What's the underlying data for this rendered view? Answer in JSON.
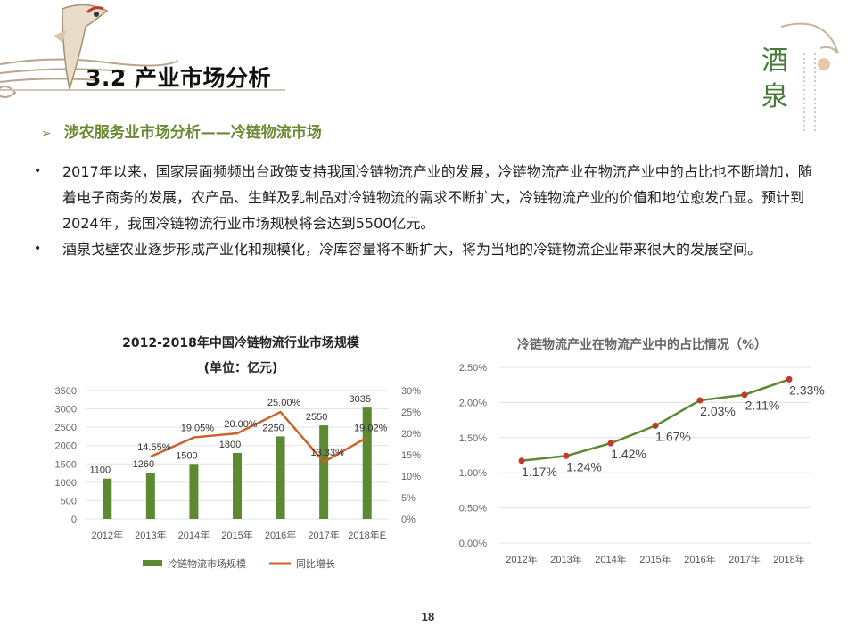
{
  "page": {
    "title": "3.2 产业市场分析",
    "subtitle": "涉农服务业市场分析——冷链物流市场",
    "bullets": [
      "2017年以来，国家层面频频出台政策支持我国冷链物流产业的发展，冷链物流产业在物流产业中的占比也不断增加，随着电子商务的发展，农产品、生鲜及乳制品对冷链物流的需求不断扩大，冷链物流产业的价值和地位愈发凸显。预计到2024年，我国冷链物流行业市场规模将会达到5500亿元。",
      "酒泉戈壁农业逐步形成产业化和规模化，冷库容量将不断扩大，将为当地的冷链物流企业带来很大的发展空间。"
    ],
    "page_number": "18",
    "logo_text": "酒泉",
    "colors": {
      "accent_green": "#6a8a33",
      "bar_green": "#5b8a32",
      "line_orange": "#c8642a",
      "line_green": "#5b8a32",
      "point_red": "#c0392b"
    }
  },
  "chart_data": [
    {
      "type": "bar",
      "title": "2012-2018年中国冷链物流行业市场规模",
      "subtitle": "(单位：亿元)",
      "categories": [
        "2012年",
        "2013年",
        "2014年",
        "2015年",
        "2016年",
        "2017年",
        "2018年E"
      ],
      "series": [
        {
          "name": "冷链物流市场规模",
          "type": "bar",
          "axis": "left",
          "values": [
            1100,
            1260,
            1500,
            1800,
            2250,
            2550,
            3035
          ],
          "labels": [
            "1100",
            "1260",
            "1500",
            "1800",
            "2250",
            "2550",
            "3035"
          ]
        },
        {
          "name": "同比增长",
          "type": "line",
          "axis": "right",
          "values": [
            null,
            14.55,
            19.05,
            20.0,
            25.0,
            13.33,
            19.02
          ],
          "labels": [
            "",
            "14.55%",
            "19.05%",
            "20.00%",
            "25.00%",
            "13.33%",
            "19.02%"
          ]
        }
      ],
      "ylim": [
        0,
        3500
      ],
      "yticks": [
        "0",
        "500",
        "1000",
        "1500",
        "2000",
        "2500",
        "3000",
        "3500"
      ],
      "y2lim": [
        0,
        30
      ],
      "y2ticks": [
        "0%",
        "5%",
        "10%",
        "15%",
        "20%",
        "25%",
        "30%"
      ],
      "grid": true,
      "legend": "bottom"
    },
    {
      "type": "line",
      "title": "冷链物流产业在物流产业中的占比情况（%）",
      "categories": [
        "2012年",
        "2013年",
        "2014年",
        "2015年",
        "2016年",
        "2017年",
        "2018年"
      ],
      "series": [
        {
          "values": [
            1.17,
            1.24,
            1.42,
            1.67,
            2.03,
            2.11,
            2.33
          ],
          "labels": [
            "1.17%",
            "1.24%",
            "1.42%",
            "1.67%",
            "2.03%",
            "2.11%",
            "2.33%"
          ]
        }
      ],
      "ylim": [
        0,
        2.5
      ],
      "yticks": [
        "0.00%",
        "0.50%",
        "1.00%",
        "1.50%",
        "2.00%",
        "2.50%"
      ],
      "grid": true
    }
  ]
}
